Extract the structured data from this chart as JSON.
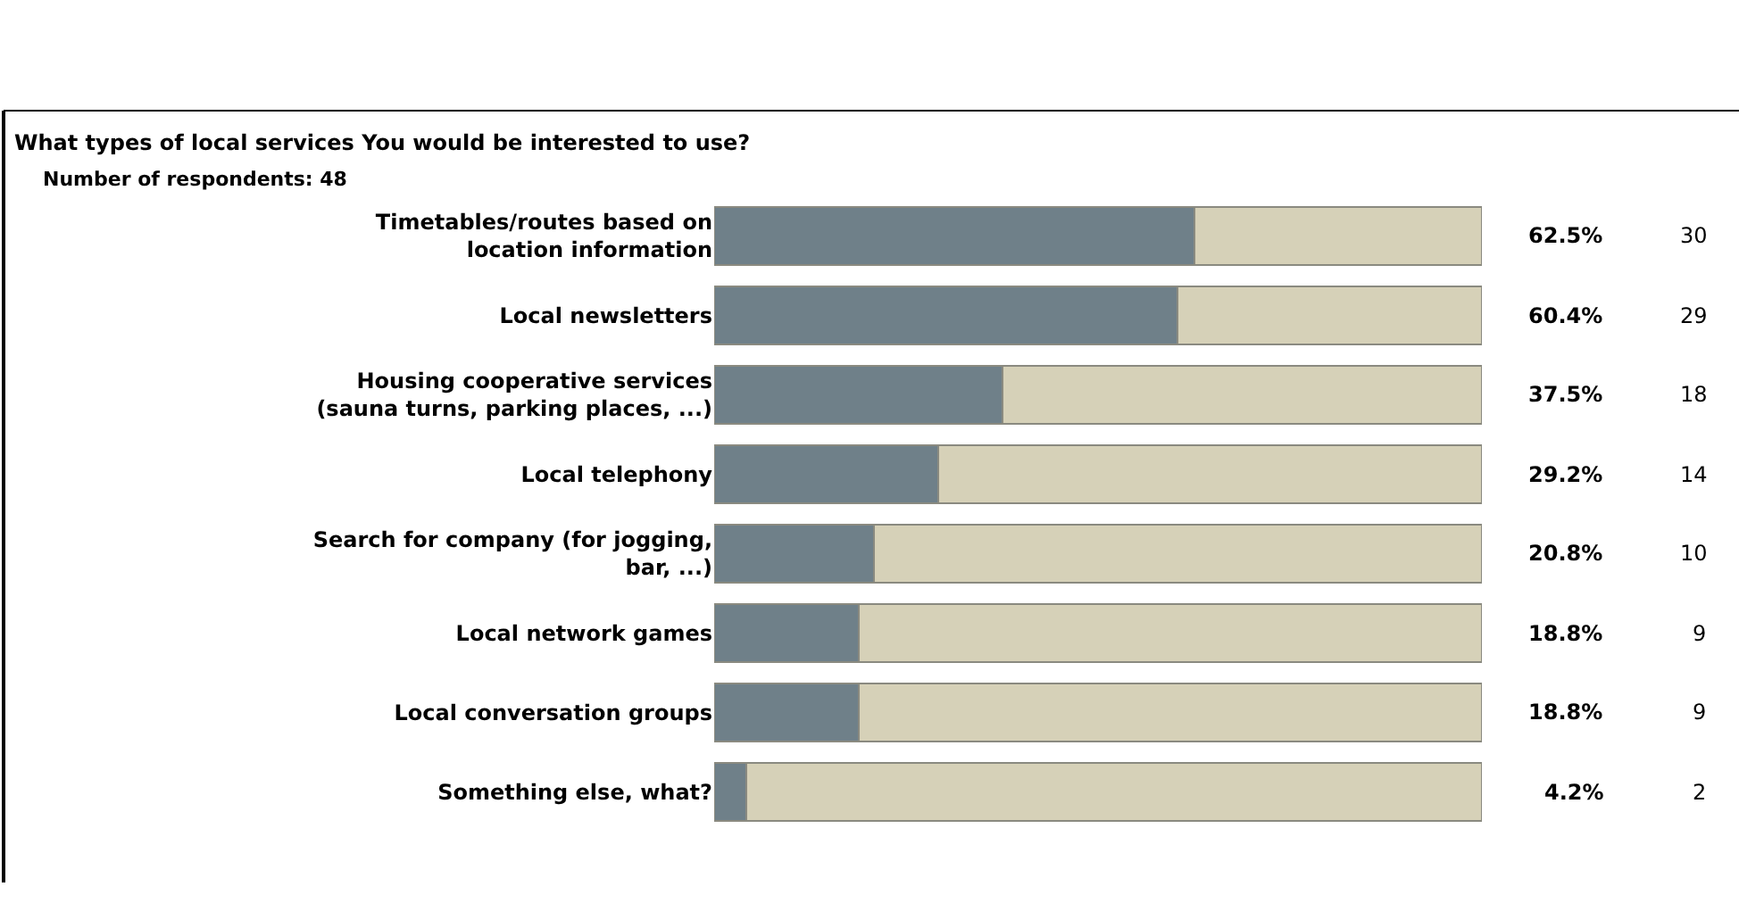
{
  "chart_data": {
    "type": "bar",
    "orientation": "horizontal",
    "stacked": true,
    "title": "What types of local services You would be interested to use?",
    "subtitle": "Number of respondents: 48",
    "categories": [
      "Timetables/routes based on location information",
      "Local newsletters",
      "Housing cooperative services (sauna turns, parking places, ...)",
      "Local telephony",
      "Search for company (for jogging, bar, ...)",
      "Local network games",
      "Local conversation groups",
      "Something else, what?"
    ],
    "xlim": [
      0,
      100
    ],
    "series": [
      {
        "color": "#6f8089",
        "values": [
          62.5,
          60.4,
          37.5,
          29.2,
          20.8,
          18.8,
          18.8,
          4.2
        ],
        "value_labels": [
          "62.5%",
          "60.4%",
          "37.5%",
          "29.2%",
          "20.8%",
          "18.8%",
          "18.8%",
          "4.2%"
        ]
      },
      {
        "color": "#d6d1b8",
        "values": [
          37.5,
          39.6,
          62.5,
          70.8,
          79.2,
          81.2,
          81.2,
          95.8
        ]
      }
    ],
    "annotations": [
      "30",
      "29",
      "18",
      "14",
      "10",
      "9",
      "9",
      "2"
    ]
  }
}
